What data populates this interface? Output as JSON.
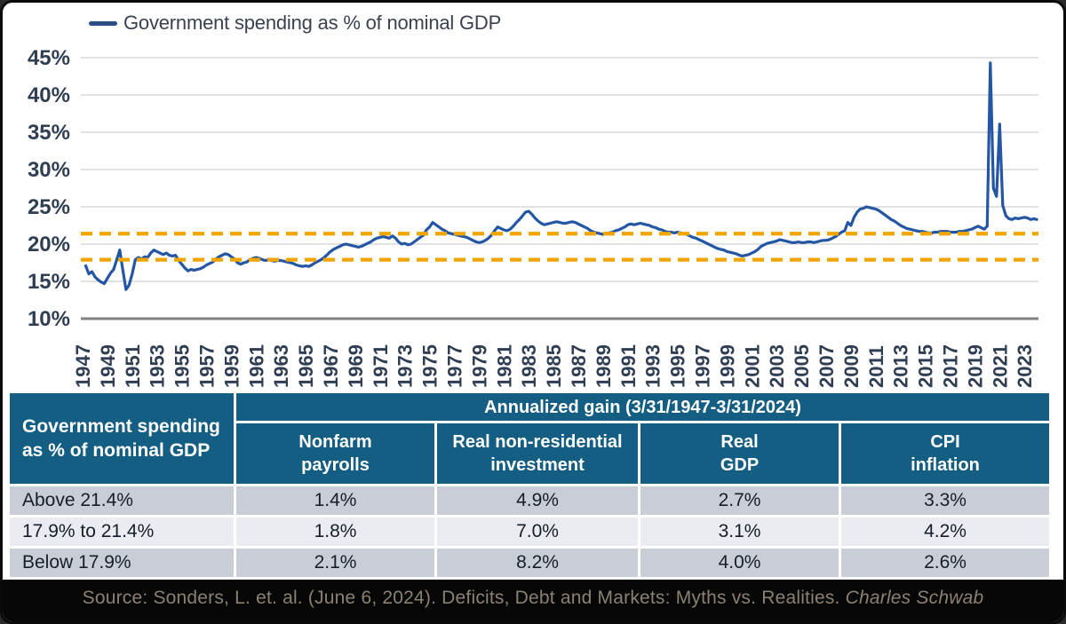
{
  "colors": {
    "line_blue": "#2456a4",
    "legend_swatch": "#2b4d85",
    "dashed_orange": "#f0a500",
    "grid_gray": "#d9d9d9",
    "axis_dark": "#7f7f7f",
    "tick_label": "#2f3e52",
    "header_teal": "#135e82",
    "row_dark": "#c9cdd5",
    "row_light": "#eaecf1"
  },
  "chart_data": {
    "type": "line",
    "title": "Government spending as % of nominal GDP",
    "legend": [
      {
        "label": "Government spending as % of nominal GDP",
        "color": "#2456a4"
      }
    ],
    "ylabel": "",
    "xlabel": "",
    "ylim": [
      10,
      45
    ],
    "y_ticks": [
      45,
      40,
      35,
      30,
      25,
      20,
      15,
      10
    ],
    "y_tick_suffix": "%",
    "x_ticks": [
      1947,
      1949,
      1951,
      1953,
      1955,
      1957,
      1959,
      1961,
      1963,
      1965,
      1967,
      1969,
      1971,
      1973,
      1975,
      1977,
      1979,
      1981,
      1983,
      1985,
      1987,
      1989,
      1991,
      1993,
      1995,
      1997,
      1999,
      2001,
      2003,
      2005,
      2007,
      2009,
      2011,
      2013,
      2015,
      2017,
      2019,
      2021,
      2023
    ],
    "grid": "horizontal",
    "legend_position": "top-left",
    "reference_lines": [
      {
        "value": 21.4,
        "style": "dashed",
        "color": "#f0a500"
      },
      {
        "value": 17.9,
        "style": "dashed",
        "color": "#f0a500"
      }
    ],
    "series": [
      {
        "name": "Government spending as % of nominal GDP",
        "start_x": 1947.25,
        "step_x": 0.25,
        "values": [
          17.1,
          16.0,
          16.3,
          15.6,
          15.2,
          14.9,
          14.7,
          15.4,
          16.1,
          16.6,
          17.9,
          19.2,
          16.5,
          13.9,
          14.5,
          16.0,
          17.9,
          18.2,
          18.0,
          18.3,
          18.2,
          18.8,
          19.2,
          19.0,
          18.8,
          18.6,
          18.8,
          18.5,
          18.4,
          18.5,
          17.8,
          17.3,
          16.8,
          16.4,
          16.6,
          16.5,
          16.6,
          16.7,
          16.9,
          17.2,
          17.4,
          17.6,
          18.0,
          18.3,
          18.5,
          18.7,
          18.6,
          18.3,
          18.0,
          17.5,
          17.3,
          17.5,
          17.6,
          17.9,
          18.1,
          18.2,
          18.1,
          17.9,
          17.8,
          17.9,
          17.8,
          17.7,
          17.8,
          17.8,
          17.7,
          17.6,
          17.5,
          17.4,
          17.2,
          17.1,
          17.0,
          17.1,
          17.0,
          17.2,
          17.5,
          17.7,
          17.9,
          18.2,
          18.6,
          19.0,
          19.3,
          19.5,
          19.7,
          19.9,
          20.0,
          19.9,
          19.8,
          19.7,
          19.6,
          19.7,
          19.9,
          20.1,
          20.3,
          20.6,
          20.8,
          20.9,
          21.0,
          20.9,
          20.8,
          21.1,
          20.8,
          20.3,
          20.0,
          20.1,
          19.9,
          20.0,
          20.3,
          20.6,
          20.9,
          21.2,
          21.9,
          22.3,
          22.9,
          22.6,
          22.3,
          22.0,
          21.8,
          21.5,
          21.4,
          21.3,
          21.2,
          21.1,
          21.0,
          20.9,
          20.7,
          20.5,
          20.3,
          20.2,
          20.3,
          20.5,
          20.8,
          21.2,
          21.8,
          22.3,
          22.1,
          21.9,
          21.8,
          22.0,
          22.4,
          22.9,
          23.3,
          23.8,
          24.3,
          24.4,
          24.0,
          23.5,
          23.1,
          22.8,
          22.6,
          22.7,
          22.8,
          22.9,
          23.0,
          22.9,
          22.8,
          22.8,
          22.9,
          23.0,
          22.9,
          22.7,
          22.5,
          22.3,
          22.1,
          21.8,
          21.6,
          21.5,
          21.4,
          21.3,
          21.4,
          21.5,
          21.6,
          21.8,
          21.9,
          22.1,
          22.3,
          22.6,
          22.7,
          22.6,
          22.7,
          22.8,
          22.7,
          22.6,
          22.5,
          22.3,
          22.2,
          22.0,
          21.9,
          21.7,
          21.6,
          21.6,
          21.5,
          21.6,
          21.5,
          21.4,
          21.3,
          21.1,
          20.9,
          20.8,
          20.6,
          20.4,
          20.2,
          20.0,
          19.8,
          19.6,
          19.4,
          19.3,
          19.2,
          19.0,
          18.9,
          18.8,
          18.7,
          18.5,
          18.4,
          18.5,
          18.6,
          18.8,
          19.0,
          19.3,
          19.7,
          19.9,
          20.1,
          20.2,
          20.3,
          20.4,
          20.6,
          20.5,
          20.4,
          20.3,
          20.2,
          20.2,
          20.3,
          20.2,
          20.2,
          20.3,
          20.3,
          20.2,
          20.3,
          20.4,
          20.5,
          20.5,
          20.6,
          20.8,
          21.0,
          21.3,
          21.6,
          21.8,
          22.9,
          22.5,
          23.6,
          24.3,
          24.7,
          24.8,
          25.0,
          24.9,
          24.8,
          24.7,
          24.5,
          24.2,
          23.9,
          23.6,
          23.3,
          23.1,
          22.8,
          22.5,
          22.3,
          22.1,
          22.0,
          21.9,
          21.8,
          21.7,
          21.7,
          21.6,
          21.5,
          21.5,
          21.6,
          21.6,
          21.7,
          21.7,
          21.7,
          21.6,
          21.6,
          21.6,
          21.7,
          21.7,
          21.8,
          21.9,
          22.0,
          22.2,
          22.4,
          22.2,
          22.0,
          22.4,
          44.3,
          27.5,
          26.4,
          36.1,
          25.2,
          23.8,
          23.4,
          23.3,
          23.5,
          23.4,
          23.5,
          23.6,
          23.5,
          23.3,
          23.4,
          23.3
        ]
      }
    ]
  },
  "legend": {
    "label": "Government spending as % of nominal GDP"
  },
  "table": {
    "span_header": "Annualized gain (3/31/1947-3/31/2024)",
    "left_header": "Government spending\nas % of nominal GDP",
    "columns": [
      "Nonfarm\npayrolls",
      "Real non-residential\ninvestment",
      "Real\nGDP",
      "CPI\ninflation"
    ],
    "rows": [
      {
        "label": "Above 21.4%",
        "values": [
          "1.4%",
          "4.9%",
          "2.7%",
          "3.3%"
        ]
      },
      {
        "label": "17.9% to 21.4%",
        "values": [
          "1.8%",
          "7.0%",
          "3.1%",
          "4.2%"
        ]
      },
      {
        "label": "Below 17.9%",
        "values": [
          "2.1%",
          "8.2%",
          "4.0%",
          "2.6%"
        ]
      }
    ]
  },
  "source": {
    "prefix": "Source: Sonders, L. et. al. (June 6, 2024). Deficits, Debt and Markets: Myths vs. Realities. ",
    "publication": "Charles Schwab"
  }
}
